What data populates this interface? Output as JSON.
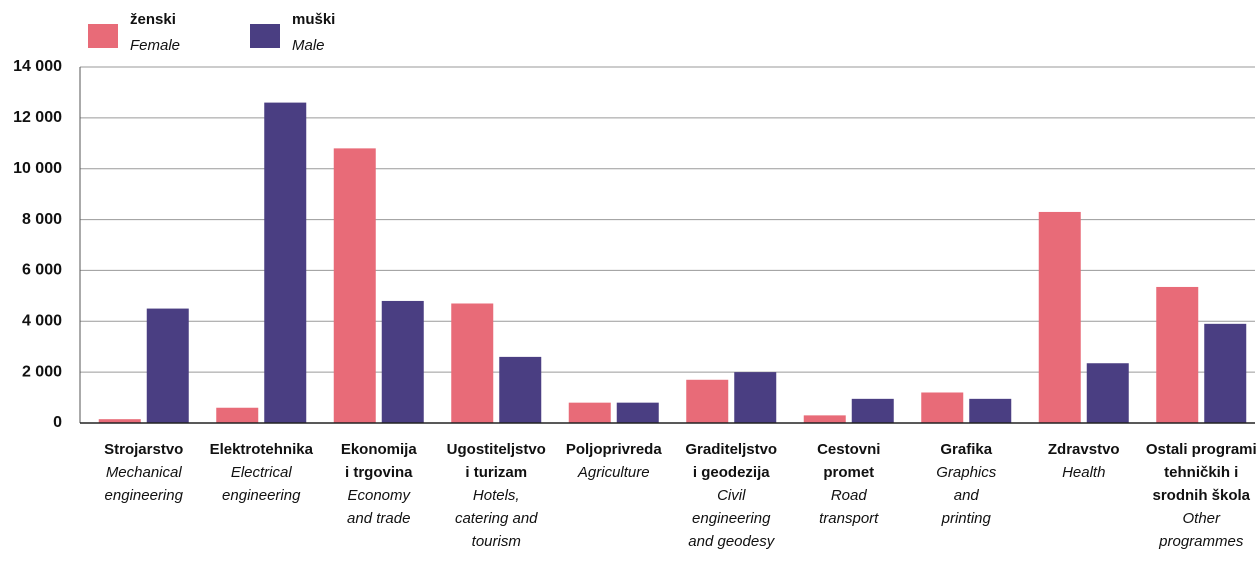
{
  "chart_data": {
    "type": "bar",
    "categories": [
      {
        "lines": [
          "Strojarstvo"
        ],
        "lines_en": [
          "Mechanical",
          "engineering"
        ]
      },
      {
        "lines": [
          "Elektrotehnika"
        ],
        "lines_en": [
          "Electrical",
          "engineering"
        ]
      },
      {
        "lines": [
          "Ekonomija",
          "i trgovina"
        ],
        "lines_en": [
          "Economy",
          "and trade"
        ]
      },
      {
        "lines": [
          "Ugostiteljstvo",
          "i turizam"
        ],
        "lines_en": [
          "Hotels,",
          "catering and",
          "tourism"
        ]
      },
      {
        "lines": [
          "Poljoprivreda"
        ],
        "lines_en": [
          "Agriculture"
        ]
      },
      {
        "lines": [
          "Graditeljstvo",
          "i geodezija"
        ],
        "lines_en": [
          "Civil",
          "engineering",
          "and geodesy"
        ]
      },
      {
        "lines": [
          "Cestovni",
          "promet"
        ],
        "lines_en": [
          "Road",
          "transport"
        ]
      },
      {
        "lines": [
          "Grafika"
        ],
        "lines_en": [
          "Graphics",
          "and",
          "printing"
        ]
      },
      {
        "lines": [
          "Zdravstvo"
        ],
        "lines_en": [
          "Health"
        ]
      },
      {
        "lines": [
          "Ostali programi",
          "tehničkih i",
          "srodnih škola"
        ],
        "lines_en": [
          "Other",
          "programmes"
        ]
      }
    ],
    "series": [
      {
        "name": "ženski",
        "name_en": "Female",
        "color": "#e86b78",
        "values": [
          150,
          600,
          10800,
          4700,
          800,
          1700,
          300,
          1200,
          8300,
          5350
        ]
      },
      {
        "name": "muški",
        "name_en": "Male",
        "color": "#4a3e82",
        "values": [
          4500,
          12600,
          4800,
          2600,
          800,
          2000,
          950,
          950,
          2350,
          3900
        ]
      }
    ],
    "ylim": [
      0,
      14000
    ],
    "yticks": [
      0,
      {
        "value": 2000,
        "label": "2 000"
      },
      {
        "value": 4000,
        "label": "4 000"
      },
      {
        "value": 6000,
        "label": "6 000"
      },
      {
        "value": 8000,
        "label": "8 000"
      },
      {
        "value": 10000,
        "label": "10 000"
      },
      {
        "value": 12000,
        "label": "12 000"
      },
      {
        "value": 14000,
        "label": "14 000"
      }
    ],
    "grid": true
  }
}
